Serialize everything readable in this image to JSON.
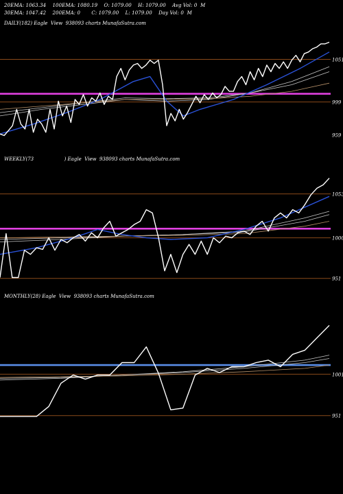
{
  "header": {
    "ema20": "20EMA: 1063.34",
    "ema100": "100EMA: 1080.19",
    "open": "O: 1079.00",
    "high": "H: 1079.00",
    "avgvol": "Avg Vol: 0  M",
    "ema30": "30EMA: 1047.42",
    "ema200": "200EMA: 0",
    "close": "C: 1079.00",
    "low": "L: 1079.00",
    "dayvol": "Day Vol: 0  M"
  },
  "colors": {
    "price": "#ffffff",
    "ema_blue": "#2a52d8",
    "ema_gray": "#c8c8c8",
    "ema_brown": "#b8926a",
    "support_magenta": "#e040e0",
    "support_blue": "#5a8ee8",
    "level_line": "#8a4a1a"
  },
  "chart_data": [
    {
      "type": "line",
      "label": "DAILY(182) Eagle  View  938093 charts MunafaSutra.com",
      "ylim": [
        935,
        1090
      ],
      "ticks": [
        {
          "value": 1051,
          "label": "1051"
        },
        {
          "value": 999,
          "label": "999"
        },
        {
          "value": 959,
          "label": "959"
        }
      ],
      "level_lines": [
        1051,
        999
      ],
      "support": 1009,
      "support_color": "#e040e0",
      "series": [
        {
          "role": "price",
          "x": [
            0,
            1,
            2,
            3,
            4,
            5,
            6,
            7,
            8,
            9,
            10,
            11,
            12,
            13,
            14,
            15,
            16,
            17,
            18,
            19,
            20,
            21,
            22,
            23,
            24,
            25,
            26,
            27,
            28,
            29,
            30,
            31,
            32,
            33,
            34,
            35,
            36,
            37,
            38,
            39,
            40,
            41,
            42,
            43,
            44,
            45,
            46,
            47,
            48,
            49,
            50,
            51,
            52,
            53,
            54,
            55,
            56,
            57,
            58,
            59,
            60,
            61,
            62,
            63,
            64,
            65,
            66,
            67,
            68,
            69,
            70,
            71,
            72,
            73,
            74,
            75,
            76,
            77,
            78,
            79
          ],
          "values": [
            960,
            958,
            964,
            970,
            990,
            972,
            966,
            990,
            962,
            978,
            972,
            962,
            990,
            966,
            1000,
            982,
            994,
            974,
            1002,
            996,
            1008,
            994,
            1004,
            1000,
            1010,
            996,
            1006,
            1002,
            1030,
            1040,
            1026,
            1038,
            1044,
            1046,
            1040,
            1044,
            1050,
            1046,
            1050,
            1020,
            970,
            985,
            976,
            990,
            978,
            986,
            996,
            1006,
            998,
            1008,
            1002,
            1010,
            1004,
            1008,
            1018,
            1012,
            1012,
            1024,
            1030,
            1020,
            1036,
            1026,
            1040,
            1030,
            1044,
            1036,
            1046,
            1040,
            1048,
            1040,
            1050,
            1056,
            1048,
            1058,
            1060,
            1064,
            1066,
            1070,
            1070,
            1072
          ]
        },
        {
          "role": "ema_blue",
          "x": [
            0,
            8,
            16,
            24,
            32,
            36,
            40,
            44,
            48,
            56,
            64,
            72,
            79
          ],
          "values": [
            960,
            972,
            986,
            1002,
            1024,
            1030,
            1000,
            982,
            990,
            1002,
            1020,
            1040,
            1060
          ]
        },
        {
          "role": "ema_gray",
          "x": [
            0,
            10,
            20,
            30,
            40,
            50,
            60,
            70,
            79
          ],
          "values": [
            982,
            990,
            996,
            1002,
            1000,
            1002,
            1010,
            1024,
            1042
          ]
        },
        {
          "role": "ema_gray",
          "x": [
            0,
            10,
            20,
            30,
            40,
            50,
            60,
            70,
            79
          ],
          "values": [
            986,
            992,
            998,
            1004,
            1003,
            1004,
            1010,
            1020,
            1036
          ]
        },
        {
          "role": "ema_brown",
          "x": [
            0,
            10,
            20,
            30,
            40,
            50,
            60,
            70,
            79
          ],
          "values": [
            990,
            994,
            998,
            1002,
            1002,
            1003,
            1006,
            1012,
            1022
          ]
        }
      ]
    },
    {
      "type": "line",
      "label": "WEEKLY(73                    ) Eagle  View  938093 charts MunafaSutra.com",
      "ylim": [
        935,
        1090
      ],
      "ticks": [
        {
          "value": 1053,
          "label": "1053"
        },
        {
          "value": 1000,
          "label": "1000"
        },
        {
          "value": 951,
          "label": "951"
        }
      ],
      "level_lines": [
        1053,
        1000,
        951
      ],
      "support": 1011,
      "support_color": "#e040e0",
      "series": [
        {
          "role": "price",
          "x": [
            0,
            1,
            2,
            3,
            4,
            5,
            6,
            7,
            8,
            9,
            10,
            11,
            12,
            13,
            14,
            15,
            16,
            17,
            18,
            19,
            20,
            21,
            22,
            23,
            24,
            25,
            26,
            27,
            28,
            29,
            30,
            31,
            32,
            33,
            34,
            35,
            36,
            37,
            38,
            39,
            40,
            41,
            42,
            43,
            44,
            45,
            46,
            47,
            48,
            49,
            50,
            51,
            52,
            53,
            54
          ],
          "values": [
            952,
            1005,
            952,
            952,
            985,
            980,
            988,
            986,
            1000,
            985,
            998,
            994,
            1000,
            1004,
            996,
            1006,
            1000,
            1012,
            1020,
            1002,
            1006,
            1010,
            1016,
            1020,
            1034,
            1030,
            1000,
            960,
            980,
            958,
            980,
            992,
            980,
            996,
            980,
            1000,
            994,
            1002,
            1000,
            1006,
            1008,
            1004,
            1014,
            1020,
            1008,
            1024,
            1030,
            1024,
            1034,
            1030,
            1040,
            1052,
            1060,
            1064,
            1072
          ]
        },
        {
          "role": "ema_blue",
          "x": [
            0,
            6,
            12,
            16,
            20,
            24,
            28,
            34,
            40,
            46,
            54
          ],
          "values": [
            980,
            988,
            1000,
            1010,
            1004,
            1000,
            998,
            1000,
            1010,
            1024,
            1050
          ]
        },
        {
          "role": "ema_gray",
          "x": [
            0,
            10,
            20,
            30,
            40,
            50,
            54
          ],
          "values": [
            995,
            998,
            1002,
            1004,
            1008,
            1024,
            1032
          ]
        },
        {
          "role": "ema_gray",
          "x": [
            0,
            10,
            20,
            30,
            40,
            50,
            54
          ],
          "values": [
            998,
            1000,
            1002,
            1004,
            1007,
            1020,
            1028
          ]
        },
        {
          "role": "ema_brown",
          "x": [
            0,
            10,
            20,
            30,
            40,
            50,
            54
          ],
          "values": [
            1000,
            1001,
            1002,
            1003,
            1005,
            1014,
            1020
          ]
        }
      ]
    },
    {
      "type": "line",
      "label": "MONTHLY(28) Eagle  View  938093 charts MunafaSutra.com",
      "ylim": [
        935,
        1090
      ],
      "ticks": [
        {
          "value": 1001,
          "label": "1001"
        },
        {
          "value": 951,
          "label": "951"
        }
      ],
      "level_lines": [
        1001,
        951
      ],
      "support": 1012,
      "support_color": "#5a8ee8",
      "series": [
        {
          "role": "price",
          "x": [
            0,
            1,
            2,
            3,
            4,
            5,
            6,
            7,
            8,
            9,
            10,
            11,
            12,
            13,
            14,
            15,
            16,
            17,
            18,
            19,
            20,
            21,
            22,
            23,
            24,
            25,
            26,
            27
          ],
          "values": [
            950,
            950,
            950,
            950,
            962,
            990,
            1000,
            995,
            1000,
            1000,
            1015,
            1015,
            1034,
            1002,
            958,
            960,
            1000,
            1008,
            1003,
            1010,
            1010,
            1015,
            1018,
            1010,
            1025,
            1030,
            1045,
            1060
          ]
        },
        {
          "role": "ema_gray",
          "x": [
            0,
            5,
            10,
            15,
            20,
            25,
            27
          ],
          "values": [
            994,
            996,
            1000,
            1004,
            1010,
            1018,
            1024
          ]
        },
        {
          "role": "ema_gray",
          "x": [
            0,
            5,
            10,
            15,
            20,
            25,
            27
          ],
          "values": [
            996,
            997,
            1000,
            1003,
            1008,
            1015,
            1020
          ]
        },
        {
          "role": "ema_brown",
          "x": [
            0,
            5,
            10,
            15,
            20,
            25,
            27
          ],
          "values": [
            997,
            998,
            999,
            1001,
            1004,
            1008,
            1012
          ]
        }
      ]
    }
  ]
}
